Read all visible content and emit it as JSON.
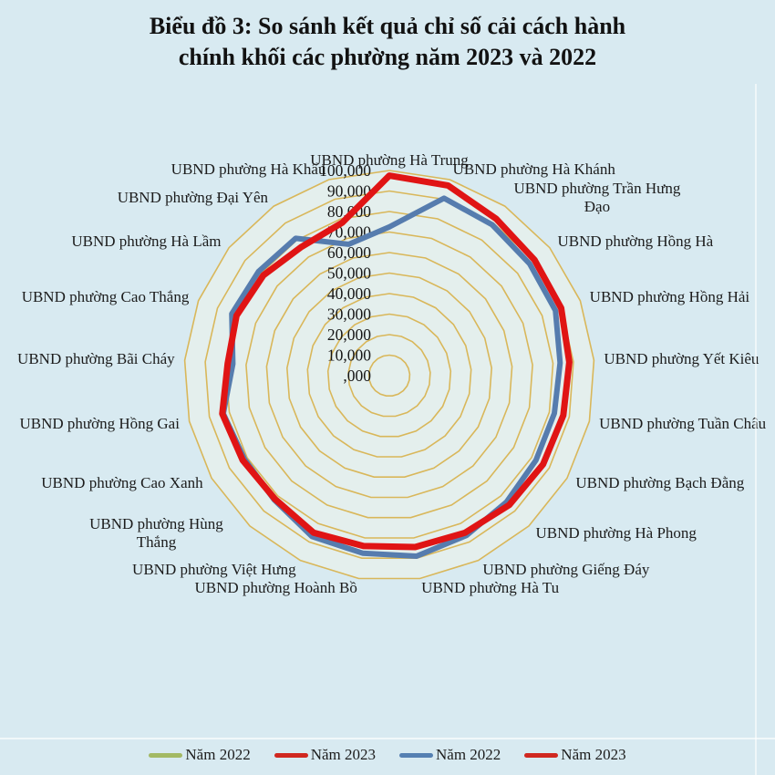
{
  "background_color": "#d8eaf1",
  "title": {
    "lines": [
      "Biểu đồ 3: So sánh kết quả chỉ số cải cách hành",
      "chính khối các phường năm 2023 và 2022"
    ]
  },
  "chart_data": {
    "type": "line",
    "subtype": "radar",
    "title": "Biểu đồ 3: So sánh kết quả chỉ số cải cách hành chính khối các phường năm 2023 và 2022",
    "categories": [
      "UBND phường Hà Trung",
      "UBND phường Hà Khánh",
      "UBND phường Trần Hưng Đạo",
      "UBND phường Hồng Hà",
      "UBND phường Hồng Hải",
      "UBND phường Yết Kiêu",
      "UBND phường Tuần Châu",
      "UBND phường Bạch Đằng",
      "UBND phường Hà Phong",
      "UBND phường Giếng Đáy",
      "UBND phường Hà Tu",
      "UBND phường Hoành Bồ",
      "UBND phường Việt Hưng",
      "UBND phường Hùng Thắng",
      "UBND phường Cao Xanh",
      "UBND phường Hồng Gai",
      "UBND phường Bãi Cháy",
      "UBND phường Cao Thắng",
      "UBND phường Hà Lầm",
      "UBND phường Đại Yên",
      "UBND phường Hà Khẩu"
    ],
    "series": [
      {
        "name": "Năm 2022",
        "color": "#567cae",
        "values": [
          72.5,
          90.5,
          89,
          87.5,
          87,
          83.5,
          82.5,
          82.5,
          84,
          86.5,
          89,
          87.5,
          87,
          82.5,
          81.5,
          83,
          76.5,
          82.5,
          81.5,
          81,
          67
        ]
      },
      {
        "name": "Năm 2023",
        "color": "#e01414",
        "values": [
          97.5,
          97,
          92.5,
          90.5,
          90,
          88,
          87,
          86.5,
          86,
          85,
          84.5,
          84,
          85,
          82,
          82.5,
          83.5,
          79,
          80,
          78.5,
          76,
          78
        ]
      }
    ],
    "radial_axis": {
      "min": 0,
      "max": 100,
      "step": 10,
      "tick_labels": [
        ",000",
        "10,000",
        "20,000",
        "30,000",
        "40,000",
        "50,000",
        "60,000",
        "70,000",
        "80,000",
        "90,000",
        "100,000"
      ]
    },
    "gridline_color": "#d9b75a",
    "grid": "on",
    "legend_position": "bottom",
    "legend": [
      {
        "label": "Năm 2022",
        "color": "#a3b964"
      },
      {
        "label": "Năm 2023",
        "color": "#d02820"
      },
      {
        "label": "Năm 2022",
        "color": "#5580b2"
      },
      {
        "label": "Năm 2023",
        "color": "#d02820"
      }
    ]
  }
}
